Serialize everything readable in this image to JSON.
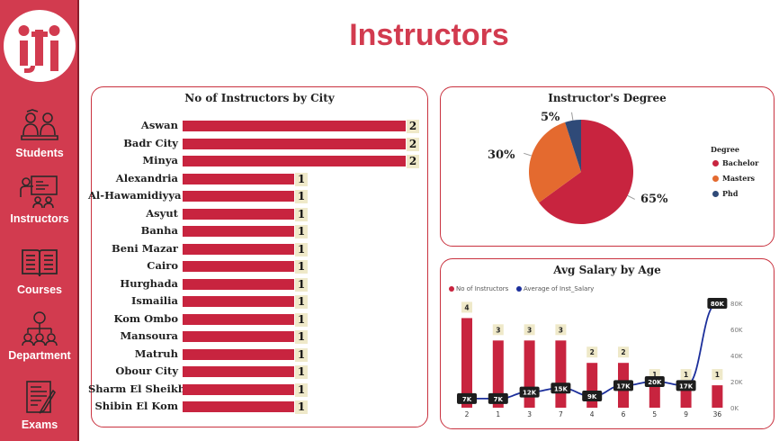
{
  "page": {
    "title": "Instructors"
  },
  "colors": {
    "brand": "#d23b4f",
    "bar": "#c8243f",
    "pie_bachelor": "#c8243f",
    "pie_masters": "#e46a2f",
    "pie_phd": "#2f4a78",
    "line": "#1c2f9b",
    "label_bg": "#efe9c9"
  },
  "sidebar": {
    "logo_icon": "iti-logo-icon",
    "items": [
      {
        "label": "Students",
        "icon": "students-icon"
      },
      {
        "label": "Instructors",
        "icon": "instructors-icon"
      },
      {
        "label": "Courses",
        "icon": "courses-icon"
      },
      {
        "label": "Department",
        "icon": "department-icon"
      },
      {
        "label": "Exams",
        "icon": "exams-icon"
      }
    ]
  },
  "chart_data": [
    {
      "type": "bar",
      "orientation": "horizontal",
      "title": "No of Instructors by City",
      "categories": [
        "Aswan",
        "Badr City",
        "Minya",
        "Alexandria",
        "Al-Hawamidiyya",
        "Asyut",
        "Banha",
        "Beni Mazar",
        "Cairo",
        "Hurghada",
        "Ismailia",
        "Kom Ombo",
        "Mansoura",
        "Matruh",
        "Obour City",
        "Sharm El Sheikh",
        "Shibin El Kom"
      ],
      "values": [
        2,
        2,
        2,
        1,
        1,
        1,
        1,
        1,
        1,
        1,
        1,
        1,
        1,
        1,
        1,
        1,
        1
      ],
      "xlim": [
        0,
        2
      ]
    },
    {
      "type": "pie",
      "title": "Instructor's Degree",
      "legend_title": "Degree",
      "categories": [
        "Bachelor",
        "Masters",
        "Phd"
      ],
      "values": [
        65,
        30,
        5
      ],
      "labels": [
        "65%",
        "30%",
        "5%"
      ],
      "legend": "right"
    },
    {
      "type": "bar",
      "title": "Avg Salary by Age",
      "categories": [
        "2",
        "1",
        "3",
        "7",
        "4",
        "6",
        "5",
        "9",
        "36"
      ],
      "series": [
        {
          "name": "No of Instructors",
          "values": [
            4,
            3,
            3,
            3,
            2,
            2,
            1,
            1,
            1
          ],
          "labels": [
            "4",
            "3",
            "3",
            "3",
            "2",
            "2",
            "1",
            "1",
            "1"
          ]
        },
        {
          "name": "Average of Inst_Salary",
          "type": "line",
          "axis": "right",
          "values": [
            7000,
            7000,
            12000,
            15000,
            9000,
            17000,
            20000,
            17000,
            80000
          ],
          "labels": [
            "7K",
            "7K",
            "12K",
            "15K",
            "9K",
            "17K",
            "20K",
            "17K",
            "80K"
          ]
        }
      ],
      "ylim": [
        0,
        4.7
      ],
      "y2lim": [
        0,
        80000
      ],
      "y2ticks": [
        "0K",
        "20K",
        "40K",
        "60K",
        "80K"
      ],
      "legend": "top-left"
    }
  ]
}
